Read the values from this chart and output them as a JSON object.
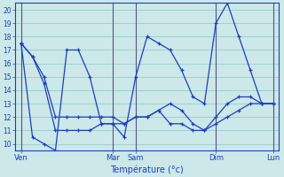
{
  "xlabel": "Température (°c)",
  "bg_color": "#cce8e8",
  "grid_color": "#99cccc",
  "line_color": "#1a3fbf",
  "ylim": [
    9.5,
    20.5
  ],
  "yticks": [
    10,
    11,
    12,
    13,
    14,
    15,
    16,
    17,
    18,
    19,
    20
  ],
  "day_labels": [
    "Ven",
    "Mar",
    "Sam",
    "Dim",
    "Lun"
  ],
  "day_positions": [
    0,
    8,
    10,
    17,
    22
  ],
  "n_points": 23,
  "series": [
    [
      17.5,
      16.5,
      14.5,
      11.0,
      11.0,
      11.0,
      11.0,
      11.5,
      11.5,
      11.5,
      12.0,
      12.0,
      12.5,
      13.0,
      12.5,
      11.5,
      11.0,
      11.5,
      12.0,
      12.5,
      13.0,
      13.0,
      13.0
    ],
    [
      17.5,
      10.5,
      10.0,
      9.5,
      17.0,
      17.0,
      15.0,
      11.5,
      11.5,
      10.5,
      15.0,
      18.0,
      17.5,
      17.0,
      15.5,
      13.5,
      13.0,
      19.0,
      20.5,
      18.0,
      15.5,
      13.0,
      13.0
    ],
    [
      17.5,
      16.5,
      15.0,
      12.0,
      12.0,
      12.0,
      12.0,
      12.0,
      12.0,
      11.5,
      12.0,
      12.0,
      12.5,
      11.5,
      11.5,
      11.0,
      11.0,
      12.0,
      13.0,
      13.5,
      13.5,
      13.0,
      13.0
    ]
  ]
}
